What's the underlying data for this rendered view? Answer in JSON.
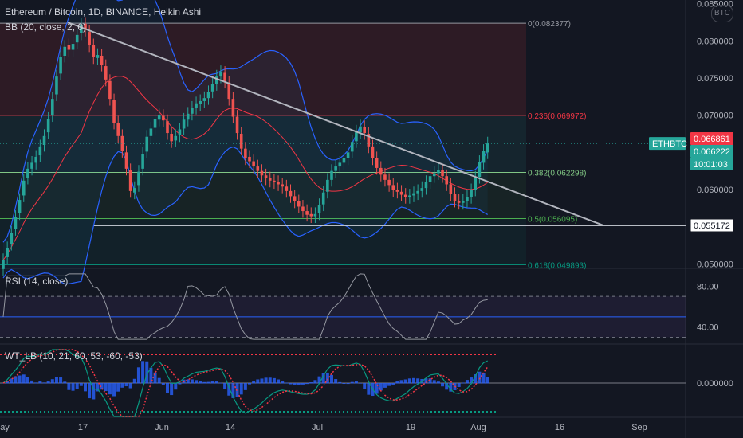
{
  "header": {
    "title": "Ethereum / Bitcoin, 1D, BINANCE, Heikin Ashi",
    "bb_label": "BB (20, close, 2, 0)",
    "symbol_badge": "BTC"
  },
  "rsi": {
    "label": "RSI (14, close)",
    "levels": [
      "80.00",
      "40.00"
    ]
  },
  "wt": {
    "label": "WT_LB (10, 21, 60, 53, -60, -53)",
    "zero_label": "0.000000"
  },
  "colors": {
    "bg": "#131722",
    "up": "#26a69a",
    "down": "#ef5350",
    "bb": "#2962ff",
    "basis": "#f23645",
    "trendline": "#b2b5be",
    "rsi": "#9598a1",
    "wt1": "#089981",
    "wt2": "#f23645"
  },
  "price_axis": {
    "ticks": [
      "0.085000",
      "0.080000",
      "0.075000",
      "0.070000",
      "0.065000",
      "0.060000",
      "0.055000",
      "0.050000"
    ],
    "badges": [
      {
        "text": "0.066861",
        "style": "red"
      },
      {
        "text": "0.066222",
        "style": "green"
      },
      {
        "text": "10:01:03",
        "style": "green"
      },
      {
        "text": "0.055172",
        "style": "white"
      }
    ],
    "symbol_tag": "ETHBTC"
  },
  "x_axis": {
    "labels": [
      "ay",
      "17",
      "Jun",
      "14",
      "Jul",
      "19",
      "Aug",
      "16",
      "Sep"
    ]
  },
  "fib_levels": [
    {
      "label": "0(0.082377)",
      "price": 0.082377,
      "color": "#9598a1"
    },
    {
      "label": "0.236(0.069972)",
      "price": 0.069972,
      "color": "#f23645"
    },
    {
      "label": "0.382(0.062298)",
      "price": 0.062298,
      "color": "#81c784"
    },
    {
      "label": "0.5(0.056095)",
      "price": 0.056095,
      "color": "#4caf50"
    },
    {
      "label": "0.618(0.049893)",
      "price": 0.049893,
      "color": "#089981"
    }
  ],
  "chart_data": {
    "type": "candlestick",
    "title": "Ethereum / Bitcoin, 1D, BINANCE, Heikin Ashi",
    "ylim": [
      0.0495,
      0.0855
    ],
    "support_price": 0.055172,
    "trendline": {
      "start": [
        "May 13",
        0.0825
      ],
      "end": [
        "Aug 24",
        0.05517
      ]
    },
    "candles_close": [
      0.0505,
      0.0521,
      0.0542,
      0.0563,
      0.0586,
      0.0612,
      0.0628,
      0.0636,
      0.0644,
      0.0658,
      0.0672,
      0.0695,
      0.0722,
      0.0752,
      0.0778,
      0.0792,
      0.0788,
      0.0796,
      0.0808,
      0.0822,
      0.0815,
      0.0794,
      0.0778,
      0.0781,
      0.0768,
      0.0748,
      0.0722,
      0.069,
      0.0672,
      0.0652,
      0.0628,
      0.0598,
      0.0602,
      0.0624,
      0.0648,
      0.0671,
      0.0682,
      0.0695,
      0.07,
      0.0693,
      0.0676,
      0.0665,
      0.0672,
      0.0681,
      0.0694,
      0.0702,
      0.071,
      0.0716,
      0.0719,
      0.0723,
      0.0731,
      0.0742,
      0.0752,
      0.0758,
      0.0745,
      0.0722,
      0.0698,
      0.0676,
      0.0655,
      0.0642,
      0.0638,
      0.0631,
      0.0625,
      0.0619,
      0.0615,
      0.0612,
      0.061,
      0.0607,
      0.0604,
      0.0598,
      0.0591,
      0.0584,
      0.0577,
      0.0571,
      0.0566,
      0.0564,
      0.0567,
      0.0579,
      0.0596,
      0.0613,
      0.0625,
      0.0631,
      0.0636,
      0.0642,
      0.065,
      0.0664,
      0.0678,
      0.0685,
      0.0676,
      0.0658,
      0.0642,
      0.0629,
      0.062,
      0.0613,
      0.0606,
      0.0599,
      0.0597,
      0.0593,
      0.059,
      0.0592,
      0.0595,
      0.0598,
      0.0602,
      0.061,
      0.0618,
      0.0622,
      0.0626,
      0.0618,
      0.0607,
      0.0594,
      0.0585,
      0.0582,
      0.0585,
      0.059,
      0.0599,
      0.0616,
      0.0637,
      0.0652,
      0.0662
    ],
    "candles_open_delta": [
      -0.0012,
      -0.0012,
      -0.0015,
      -0.0016,
      -0.0018,
      -0.002,
      -0.0012,
      -0.0008,
      -0.0008,
      -0.0012,
      -0.0012,
      -0.0018,
      -0.0022,
      -0.0024,
      -0.0022,
      -0.0012,
      0.0006,
      -0.0008,
      -0.001,
      -0.0012,
      0.0008,
      0.0018,
      0.0016,
      -0.0004,
      0.0012,
      0.0018,
      0.0024,
      0.003,
      0.0018,
      0.002,
      0.0022,
      0.0028,
      -0.0006,
      -0.0018,
      -0.002,
      -0.002,
      -0.001,
      -0.0012,
      -0.0006,
      0.0006,
      0.0016,
      0.001,
      -0.0006,
      -0.0008,
      -0.0012,
      -0.0008,
      -0.0008,
      -0.0006,
      -0.0004,
      -0.0004,
      -0.0008,
      -0.001,
      -0.001,
      -0.0006,
      0.0012,
      0.0022,
      0.0024,
      0.0022,
      0.002,
      0.0013,
      0.0006,
      0.0007,
      0.0006,
      0.0006,
      0.0004,
      0.0003,
      0.0002,
      0.0003,
      0.0003,
      0.0006,
      0.0007,
      0.0007,
      0.0007,
      0.0006,
      0.0005,
      0.0003,
      -0.0003,
      -0.0011,
      -0.0016,
      -0.0016,
      -0.0012,
      -0.0006,
      -0.0005,
      -0.0006,
      -0.0008,
      -0.0013,
      -0.0013,
      -0.0008,
      0.0008,
      0.0017,
      0.0016,
      0.0013,
      0.0009,
      0.0007,
      0.0007,
      0.0007,
      0.0003,
      0.0004,
      0.0003,
      -0.0002,
      -0.0003,
      -0.0003,
      -0.0004,
      -0.0008,
      -0.0008,
      -0.0004,
      -0.0004,
      0.0008,
      0.0011,
      0.0013,
      0.0009,
      0.0003,
      -0.0003,
      -0.0005,
      -0.0009,
      -0.0016,
      -0.002,
      -0.0016,
      -0.0012
    ]
  }
}
